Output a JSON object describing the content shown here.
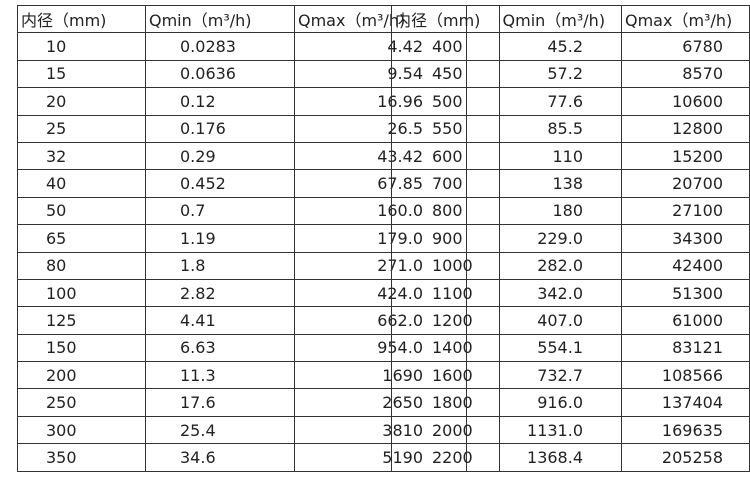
{
  "tables": [
    {
      "header": [
        "内径（mm)",
        "Qmin（m³/h)",
        "Qmax（m³/h)"
      ],
      "rows": [
        [
          "10",
          "0.0283",
          "4.42"
        ],
        [
          "15",
          "0.0636",
          "9.54"
        ],
        [
          "20",
          "0.12",
          "16.96"
        ],
        [
          "25",
          "0.176",
          "26.5"
        ],
        [
          "32",
          "0.29",
          "43.42"
        ],
        [
          "40",
          "0.452",
          "67.85"
        ],
        [
          "50",
          "0.7",
          "160.0"
        ],
        [
          "65",
          "1.19",
          "179.0"
        ],
        [
          "80",
          "1.8",
          "271.0"
        ],
        [
          "100",
          "2.82",
          "424.0"
        ],
        [
          "125",
          "4.41",
          "662.0"
        ],
        [
          "150",
          "6.63",
          "954.0"
        ],
        [
          "200",
          "11.3",
          "1690"
        ],
        [
          "250",
          "17.6",
          "2650"
        ],
        [
          "300",
          "25.4",
          "3810"
        ],
        [
          "350",
          "34.6",
          "5190"
        ]
      ]
    },
    {
      "header": [
        "内径（mm)",
        "Qmin（m³/h)",
        "Qmax（m³/h)"
      ],
      "rows": [
        [
          "400",
          "45.2",
          "6780"
        ],
        [
          "450",
          "57.2",
          "8570"
        ],
        [
          "500",
          "77.6",
          "10600"
        ],
        [
          "550",
          "85.5",
          "12800"
        ],
        [
          "600",
          "110",
          "15200"
        ],
        [
          "700",
          "138",
          "20700"
        ],
        [
          "800",
          "180",
          "27100"
        ],
        [
          "900",
          "229.0",
          "34300"
        ],
        [
          "1000",
          "282.0",
          "42400"
        ],
        [
          "1100",
          "342.0",
          "51300"
        ],
        [
          "1200",
          "407.0",
          "61000"
        ],
        [
          "1400",
          "554.1",
          "83121"
        ],
        [
          "1600",
          "732.7",
          "108566"
        ],
        [
          "1800",
          "916.0",
          "137404"
        ],
        [
          "2000",
          "1131.0",
          "169635"
        ],
        [
          "2200",
          "1368.4",
          "205258"
        ]
      ]
    }
  ]
}
